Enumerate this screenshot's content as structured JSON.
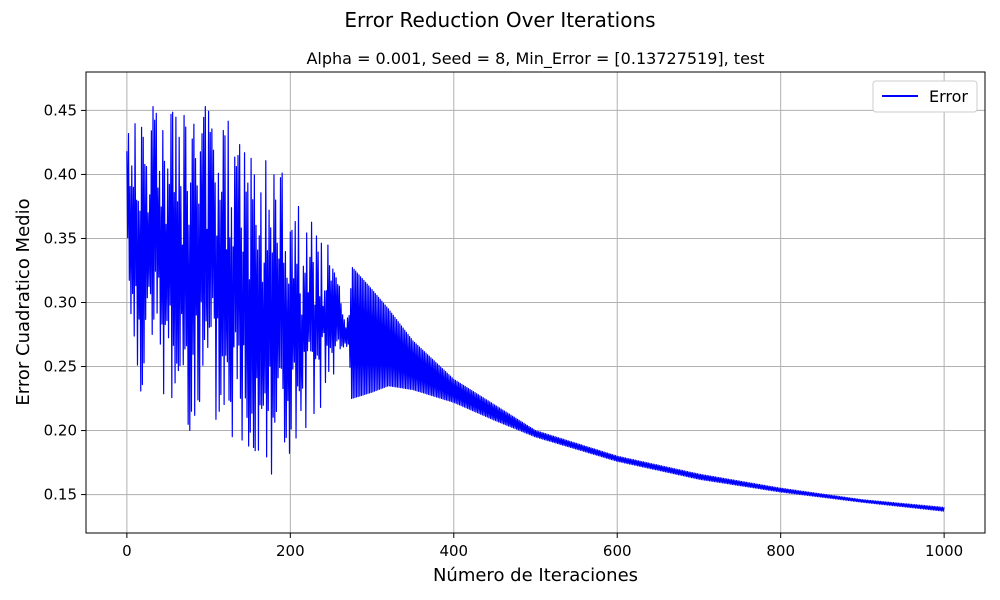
{
  "figure": {
    "suptitle": "Error Reduction Over Iterations"
  },
  "chart_data": {
    "type": "line",
    "title": "Alpha = 0.001, Seed = 8, Min_Error = [0.13727519], test",
    "xlabel": "Número de Iteraciones",
    "ylabel": "Error Cuadratico Medio",
    "xlim": [
      -50,
      1050
    ],
    "ylim": [
      0.12,
      0.48
    ],
    "xticks": [
      0,
      200,
      400,
      600,
      800,
      1000
    ],
    "xtick_labels": [
      "0",
      "200",
      "400",
      "600",
      "800",
      "1000"
    ],
    "yticks": [
      0.15,
      0.2,
      0.25,
      0.3,
      0.35,
      0.4,
      0.45
    ],
    "ytick_labels": [
      "0.15",
      "0.20",
      "0.25",
      "0.30",
      "0.35",
      "0.40",
      "0.45"
    ],
    "grid": true,
    "legend": {
      "position": "upper-right",
      "entries": [
        "Error"
      ]
    },
    "series": [
      {
        "name": "Error",
        "color": "#0000ff",
        "x": [
          0,
          5,
          15,
          30,
          50,
          70,
          90,
          100,
          120,
          140,
          160,
          180,
          200,
          210,
          230,
          250,
          270,
          275,
          300,
          320,
          350,
          400,
          450,
          500,
          600,
          700,
          800,
          900,
          1000
        ],
        "upper": [
          0.435,
          0.44,
          0.465,
          0.465,
          0.46,
          0.455,
          0.45,
          0.457,
          0.445,
          0.44,
          0.425,
          0.42,
          0.4,
          0.38,
          0.365,
          0.34,
          0.29,
          0.328,
          0.31,
          0.295,
          0.27,
          0.24,
          0.22,
          0.2,
          0.18,
          0.166,
          0.155,
          0.146,
          0.14
        ],
        "lower": [
          0.355,
          0.24,
          0.23,
          0.225,
          0.21,
          0.2,
          0.195,
          0.19,
          0.185,
          0.175,
          0.17,
          0.165,
          0.16,
          0.158,
          0.21,
          0.23,
          0.26,
          0.225,
          0.23,
          0.235,
          0.232,
          0.222,
          0.208,
          0.195,
          0.176,
          0.162,
          0.152,
          0.144,
          0.137
        ]
      }
    ]
  }
}
